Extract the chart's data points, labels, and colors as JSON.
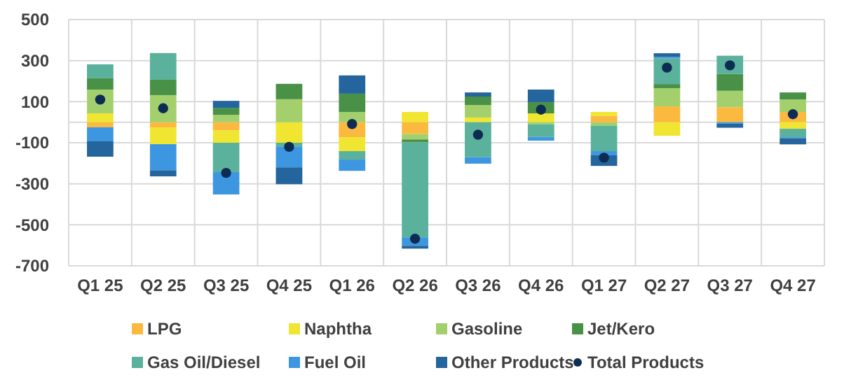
{
  "chart_data": {
    "type": "bar",
    "stacked": true,
    "categories": [
      "Q1 25",
      "Q2 25",
      "Q3 25",
      "Q4 25",
      "Q1 26",
      "Q2 26",
      "Q3 26",
      "Q4 26",
      "Q1 27",
      "Q2 27",
      "Q3 27",
      "Q4 27"
    ],
    "series": [
      {
        "name": "LPG",
        "color": "#fbb93f",
        "values": [
          -25,
          -25,
          -39,
          0,
          -73,
          -57,
          0,
          0,
          30,
          77,
          73,
          50
        ]
      },
      {
        "name": "Naphtha",
        "color": "#f0e530",
        "values": [
          43,
          -82,
          -61,
          -100,
          -68,
          50,
          23,
          43,
          20,
          -66,
          0,
          -32
        ]
      },
      {
        "name": "Gasoline",
        "color": "#a3d06c",
        "values": [
          116,
          132,
          36,
          112,
          50,
          -27,
          61,
          -11,
          -18,
          89,
          80,
          61
        ]
      },
      {
        "name": "Jet/Kero",
        "color": "#4a9148",
        "values": [
          55,
          75,
          34,
          75,
          89,
          -14,
          41,
          55,
          0,
          20,
          82,
          34
        ]
      },
      {
        "name": "Gas Oil/Diesel",
        "color": "#5ab19c",
        "values": [
          68,
          130,
          -143,
          -18,
          -41,
          -463,
          -170,
          -61,
          -123,
          125,
          89,
          -41
        ]
      },
      {
        "name": "Fuel Oil",
        "color": "#3d97e0",
        "values": [
          -68,
          -127,
          -109,
          -102,
          -55,
          -41,
          -32,
          -18,
          -20,
          7,
          -7,
          -5
        ]
      },
      {
        "name": "Other Products",
        "color": "#23659c",
        "values": [
          -75,
          -30,
          34,
          -82,
          89,
          -14,
          20,
          61,
          -52,
          18,
          -20,
          -30
        ]
      },
      {
        "name": "Total Products",
        "type": "scatter",
        "color": "#0d2c54",
        "values": [
          110,
          68,
          -247,
          -120,
          -9,
          -568,
          -61,
          61,
          -173,
          266,
          277,
          39
        ]
      }
    ],
    "ylim": [
      -700,
      500
    ],
    "yticks": [
      -700,
      -500,
      -300,
      -100,
      100,
      300,
      500
    ],
    "grid": true,
    "legend": "bottom",
    "marker": "circle"
  }
}
